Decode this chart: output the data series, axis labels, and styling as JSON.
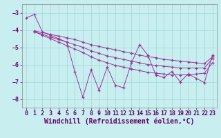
{
  "bg_color": "#c8eef0",
  "grid_color": "#9ed8d8",
  "line_color": "#993399",
  "xlabel": "Windchill (Refroidissement éolien,°C)",
  "xlabel_fontsize": 7,
  "tick_fontsize": 6,
  "ylim": [
    -8.5,
    -2.5
  ],
  "xlim": [
    -0.5,
    23.5
  ],
  "yticks": [
    -8,
    -7,
    -6,
    -5,
    -4,
    -3
  ],
  "xticks": [
    0,
    1,
    2,
    3,
    4,
    5,
    6,
    7,
    8,
    9,
    10,
    11,
    12,
    13,
    14,
    15,
    16,
    17,
    18,
    19,
    20,
    21,
    22,
    23
  ],
  "lines": [
    {
      "x": [
        0,
        1,
        2,
        3,
        4,
        5,
        6,
        7,
        8,
        9,
        10,
        11,
        12,
        13,
        14,
        15,
        16,
        17,
        18,
        19,
        20,
        21,
        22,
        23
      ],
      "y": [
        -3.3,
        -3.1,
        -4.1,
        -4.3,
        -4.5,
        -4.7,
        -6.4,
        -7.9,
        -6.3,
        -7.5,
        -6.15,
        -7.2,
        -7.35,
        -5.9,
        -4.85,
        -5.45,
        -6.6,
        -6.75,
        -6.4,
        -7.0,
        -6.55,
        -6.8,
        -7.05,
        -5.45
      ]
    },
    {
      "x": [
        1,
        2,
        3,
        4,
        5,
        6,
        7,
        8,
        9,
        10,
        11,
        12,
        13,
        14,
        15,
        16,
        17,
        18,
        19,
        20,
        21,
        22,
        23
      ],
      "y": [
        -4.05,
        -4.15,
        -4.25,
        -4.35,
        -4.45,
        -4.55,
        -4.7,
        -4.85,
        -4.95,
        -5.05,
        -5.15,
        -5.25,
        -5.35,
        -5.45,
        -5.55,
        -5.6,
        -5.7,
        -5.75,
        -5.8,
        -5.85,
        -5.9,
        -5.95,
        -5.55
      ]
    },
    {
      "x": [
        1,
        2,
        3,
        4,
        5,
        6,
        7,
        8,
        9,
        10,
        11,
        12,
        13,
        14,
        15,
        16,
        17,
        18,
        19,
        20,
        21,
        22,
        23
      ],
      "y": [
        -4.1,
        -4.25,
        -4.4,
        -4.55,
        -4.7,
        -4.85,
        -5.0,
        -5.2,
        -5.35,
        -5.5,
        -5.6,
        -5.7,
        -5.8,
        -5.9,
        -6.0,
        -6.05,
        -6.1,
        -6.15,
        -6.2,
        -6.2,
        -6.2,
        -6.2,
        -5.65
      ]
    },
    {
      "x": [
        1,
        2,
        3,
        4,
        5,
        6,
        7,
        8,
        9,
        10,
        11,
        12,
        13,
        14,
        15,
        16,
        17,
        18,
        19,
        20,
        21,
        22,
        23
      ],
      "y": [
        -4.1,
        -4.3,
        -4.5,
        -4.7,
        -4.9,
        -5.1,
        -5.3,
        -5.55,
        -5.75,
        -5.9,
        -6.05,
        -6.15,
        -6.25,
        -6.35,
        -6.45,
        -6.5,
        -6.55,
        -6.6,
        -6.6,
        -6.6,
        -6.55,
        -6.5,
        -5.9
      ]
    }
  ]
}
